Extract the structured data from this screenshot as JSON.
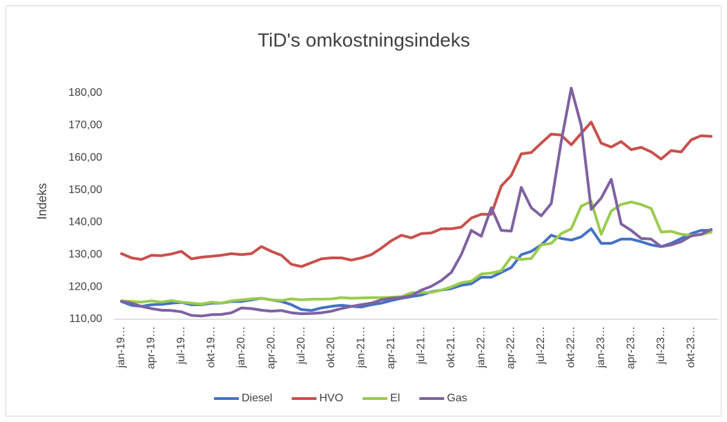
{
  "chart_data": {
    "type": "line",
    "title": "TiD's omkostningsindeks",
    "y_label": "Indeks",
    "categories": [
      "jan-19…",
      null,
      null,
      "apr-19…",
      null,
      null,
      "jul-19…",
      null,
      null,
      "okt-19…",
      null,
      null,
      "jan-20…",
      null,
      null,
      "apr-20…",
      null,
      null,
      "jul-20…",
      null,
      null,
      "okt-20…",
      null,
      null,
      "jan-21…",
      null,
      null,
      "apr-21…",
      null,
      null,
      "jul-21…",
      null,
      null,
      "okt-21…",
      null,
      null,
      "jan-22…",
      null,
      null,
      "apr-22…",
      null,
      null,
      "jul-22…",
      null,
      null,
      "okt-22…",
      null,
      null,
      "jan-23…",
      null,
      null,
      "apr-23…",
      null,
      null,
      "jul-23…",
      null,
      null,
      "okt-23…",
      null,
      null
    ],
    "series": [
      {
        "name": "Diesel",
        "color": "#4472c4",
        "values": [
          115.5,
          114.3,
          114.0,
          114.5,
          114.6,
          115.0,
          115.2,
          114.5,
          114.5,
          115.0,
          115.0,
          115.5,
          115.5,
          116.0,
          116.5,
          116.0,
          115.5,
          114.5,
          113.0,
          112.7,
          113.5,
          114.0,
          114.3,
          114.0,
          113.8,
          114.5,
          115.0,
          115.8,
          116.5,
          117.0,
          117.5,
          118.5,
          119.0,
          119.5,
          120.5,
          121.0,
          123.0,
          123.0,
          124.5,
          126.0,
          130.0,
          131.0,
          133.0,
          136.0,
          135.0,
          134.5,
          135.5,
          138.0,
          133.5,
          133.5,
          134.8,
          134.8,
          134.0,
          133.0,
          132.5,
          133.5,
          135.0,
          136.5,
          137.5,
          137.5
        ]
      },
      {
        "name": "HVO",
        "color": "#c9504c",
        "values": [
          130.3,
          129.0,
          128.5,
          129.8,
          129.7,
          130.2,
          131.0,
          128.7,
          129.2,
          129.5,
          129.8,
          130.3,
          130.0,
          130.3,
          132.5,
          131.0,
          129.8,
          127.0,
          126.3,
          127.5,
          128.7,
          129.0,
          129.0,
          128.3,
          129.0,
          130.0,
          132.0,
          134.3,
          136.0,
          135.2,
          136.5,
          136.7,
          138.0,
          138.0,
          138.5,
          141.3,
          142.5,
          142.5,
          151.2,
          154.5,
          161.2,
          161.6,
          164.5,
          167.3,
          167.0,
          164.0,
          167.5,
          171.0,
          164.5,
          163.3,
          165.0,
          162.5,
          163.2,
          161.8,
          159.6,
          162.2,
          161.8,
          165.5,
          166.8,
          166.6
        ]
      },
      {
        "name": "El",
        "color": "#9acb4e",
        "values": [
          115.7,
          115.5,
          115.3,
          115.7,
          115.3,
          115.8,
          115.3,
          115.0,
          114.7,
          115.3,
          115.0,
          115.7,
          116.0,
          116.3,
          116.5,
          116.0,
          115.8,
          116.3,
          116.0,
          116.2,
          116.2,
          116.3,
          116.7,
          116.5,
          116.6,
          116.7,
          116.7,
          116.8,
          117.0,
          118.2,
          118.3,
          118.3,
          119.0,
          120.0,
          121.3,
          121.8,
          124.0,
          124.3,
          125.0,
          129.3,
          128.5,
          128.8,
          133.0,
          133.5,
          136.5,
          138.0,
          145.0,
          146.5,
          136.3,
          143.5,
          145.5,
          146.3,
          145.5,
          144.3,
          137.0,
          137.2,
          136.3,
          136.0,
          136.2,
          137.0
        ]
      },
      {
        "name": "Gas",
        "color": "#7f62a1",
        "values": [
          115.5,
          115.0,
          114.0,
          113.3,
          112.8,
          112.7,
          112.3,
          111.2,
          111.0,
          111.4,
          111.5,
          112.0,
          113.5,
          113.3,
          112.8,
          112.5,
          112.7,
          112.0,
          111.7,
          111.8,
          112.0,
          112.5,
          113.3,
          114.0,
          114.5,
          115.0,
          116.0,
          116.5,
          116.7,
          117.3,
          119.0,
          120.2,
          122.0,
          124.5,
          130.0,
          137.5,
          135.7,
          144.5,
          137.5,
          137.3,
          150.8,
          144.5,
          142.0,
          145.8,
          165.0,
          181.5,
          170.0,
          144.0,
          147.5,
          153.3,
          139.5,
          137.5,
          135.0,
          134.8,
          132.5,
          133.0,
          134.0,
          135.8,
          136.3,
          137.8
        ]
      }
    ],
    "ylim": [
      110,
      182
    ],
    "yticks": [
      {
        "value": 110,
        "label": "110,00"
      },
      {
        "value": 120,
        "label": "120,00"
      },
      {
        "value": 130,
        "label": "130,00"
      },
      {
        "value": 140,
        "label": "140,00"
      },
      {
        "value": 150,
        "label": "150,00"
      },
      {
        "value": 160,
        "label": "160,00"
      },
      {
        "value": 170,
        "label": "170,00"
      },
      {
        "value": 180,
        "label": "180,00"
      }
    ],
    "grid": false,
    "legend": "bottom"
  }
}
